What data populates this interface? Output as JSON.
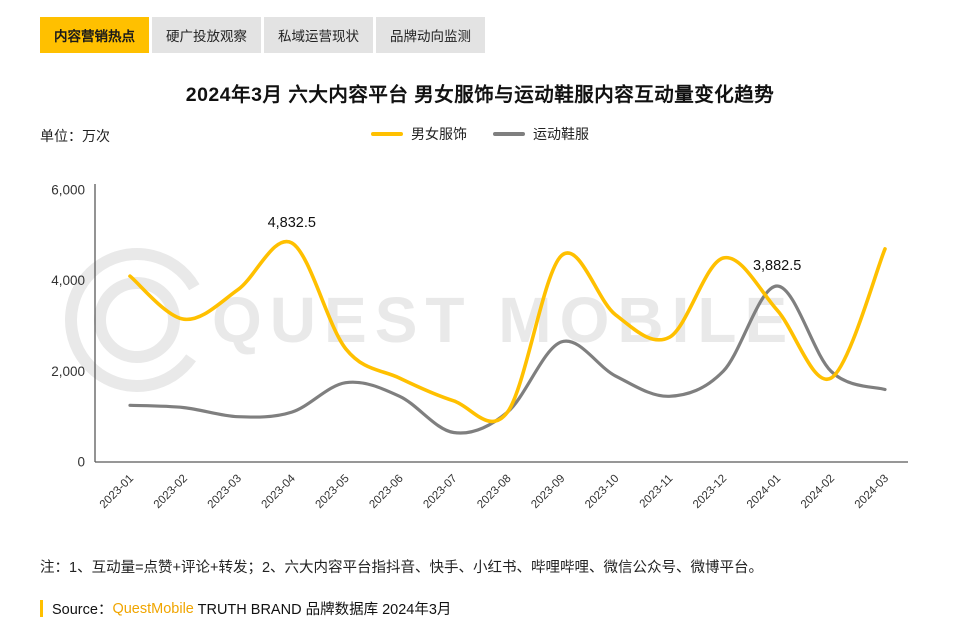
{
  "tabs": [
    {
      "label": "内容营销热点",
      "active": true
    },
    {
      "label": "硬广投放观察",
      "active": false
    },
    {
      "label": "私域运营现状",
      "active": false
    },
    {
      "label": "品牌动向监测",
      "active": false
    }
  ],
  "title": "2024年3月 六大内容平台 男女服饰与运动鞋服内容互动量变化趋势",
  "unit_label": "单位：万次",
  "watermark": {
    "text": "QUEST MOBILE"
  },
  "colors": {
    "accent": "#FFC000",
    "brand_text": "#F0A500",
    "axis": "#595959",
    "watermark": "#E9E9E9"
  },
  "chart_data": {
    "type": "line",
    "title": "2024年3月 六大内容平台 男女服饰与运动鞋服内容互动量变化趋势",
    "ylabel": "单位：万次",
    "categories": [
      "2023-01",
      "2023-02",
      "2023-03",
      "2023-04",
      "2023-05",
      "2023-06",
      "2023-07",
      "2023-08",
      "2023-09",
      "2023-10",
      "2023-11",
      "2023-12",
      "2024-01",
      "2024-02",
      "2024-03"
    ],
    "series": [
      {
        "name": "男女服饰",
        "color": "#FFC000",
        "values": [
          4100,
          3150,
          3800,
          4832.5,
          2500,
          1850,
          1350,
          1100,
          4550,
          3250,
          2750,
          4500,
          3350,
          1850,
          4700
        ]
      },
      {
        "name": "运动鞋服",
        "color": "#7F7F7F",
        "values": [
          1250,
          1200,
          1000,
          1100,
          1750,
          1450,
          650,
          1100,
          2650,
          1900,
          1450,
          2000,
          3882.5,
          2000,
          1600
        ]
      }
    ],
    "ylim": [
      0,
      6000
    ],
    "yticks": [
      0,
      2000,
      4000,
      6000
    ],
    "ytick_labels": [
      "0",
      "2,000",
      "4,000",
      "6,000"
    ],
    "annotations": [
      {
        "series": 0,
        "index": 3,
        "label": "4,832.5"
      },
      {
        "series": 1,
        "index": 12,
        "label": "3,882.5"
      }
    ],
    "grid": false,
    "legend_position": "top"
  },
  "note": "注：1、互动量=点赞+评论+转发；2、六大内容平台指抖音、快手、小红书、哔哩哔哩、微信公众号、微博平台。",
  "footer": {
    "source_label": "Source：",
    "brand": "QuestMobile",
    "suffix": " TRUTH BRAND 品牌数据库 2024年3月"
  }
}
